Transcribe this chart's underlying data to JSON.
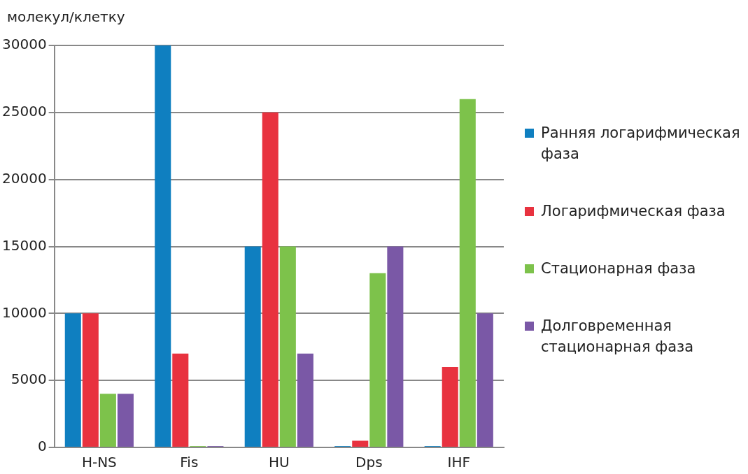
{
  "chart_data": {
    "type": "bar",
    "ylabel": "молекул/клетку",
    "categories": [
      "H-NS",
      "Fis",
      "HU",
      "Dps",
      "IHF"
    ],
    "series": [
      {
        "name": "Ранняя логарифмическая фаза",
        "color": "#0f7fc0",
        "values": [
          10000,
          30000,
          15000,
          100,
          100
        ]
      },
      {
        "name": "Логарифмическая фаза",
        "color": "#e8323f",
        "values": [
          10000,
          7000,
          25000,
          500,
          6000
        ]
      },
      {
        "name": "Стационарная фаза",
        "color": "#7dc24b",
        "values": [
          4000,
          100,
          15000,
          13000,
          26000
        ]
      },
      {
        "name": "Долговременная стационарная фаза",
        "color": "#7a58a6",
        "values": [
          4000,
          100,
          7000,
          15000,
          10000
        ]
      }
    ],
    "ylim": [
      0,
      30000
    ],
    "yticks": [
      0,
      5000,
      10000,
      15000,
      20000,
      25000,
      30000
    ],
    "grid": "y",
    "legend": "right"
  }
}
